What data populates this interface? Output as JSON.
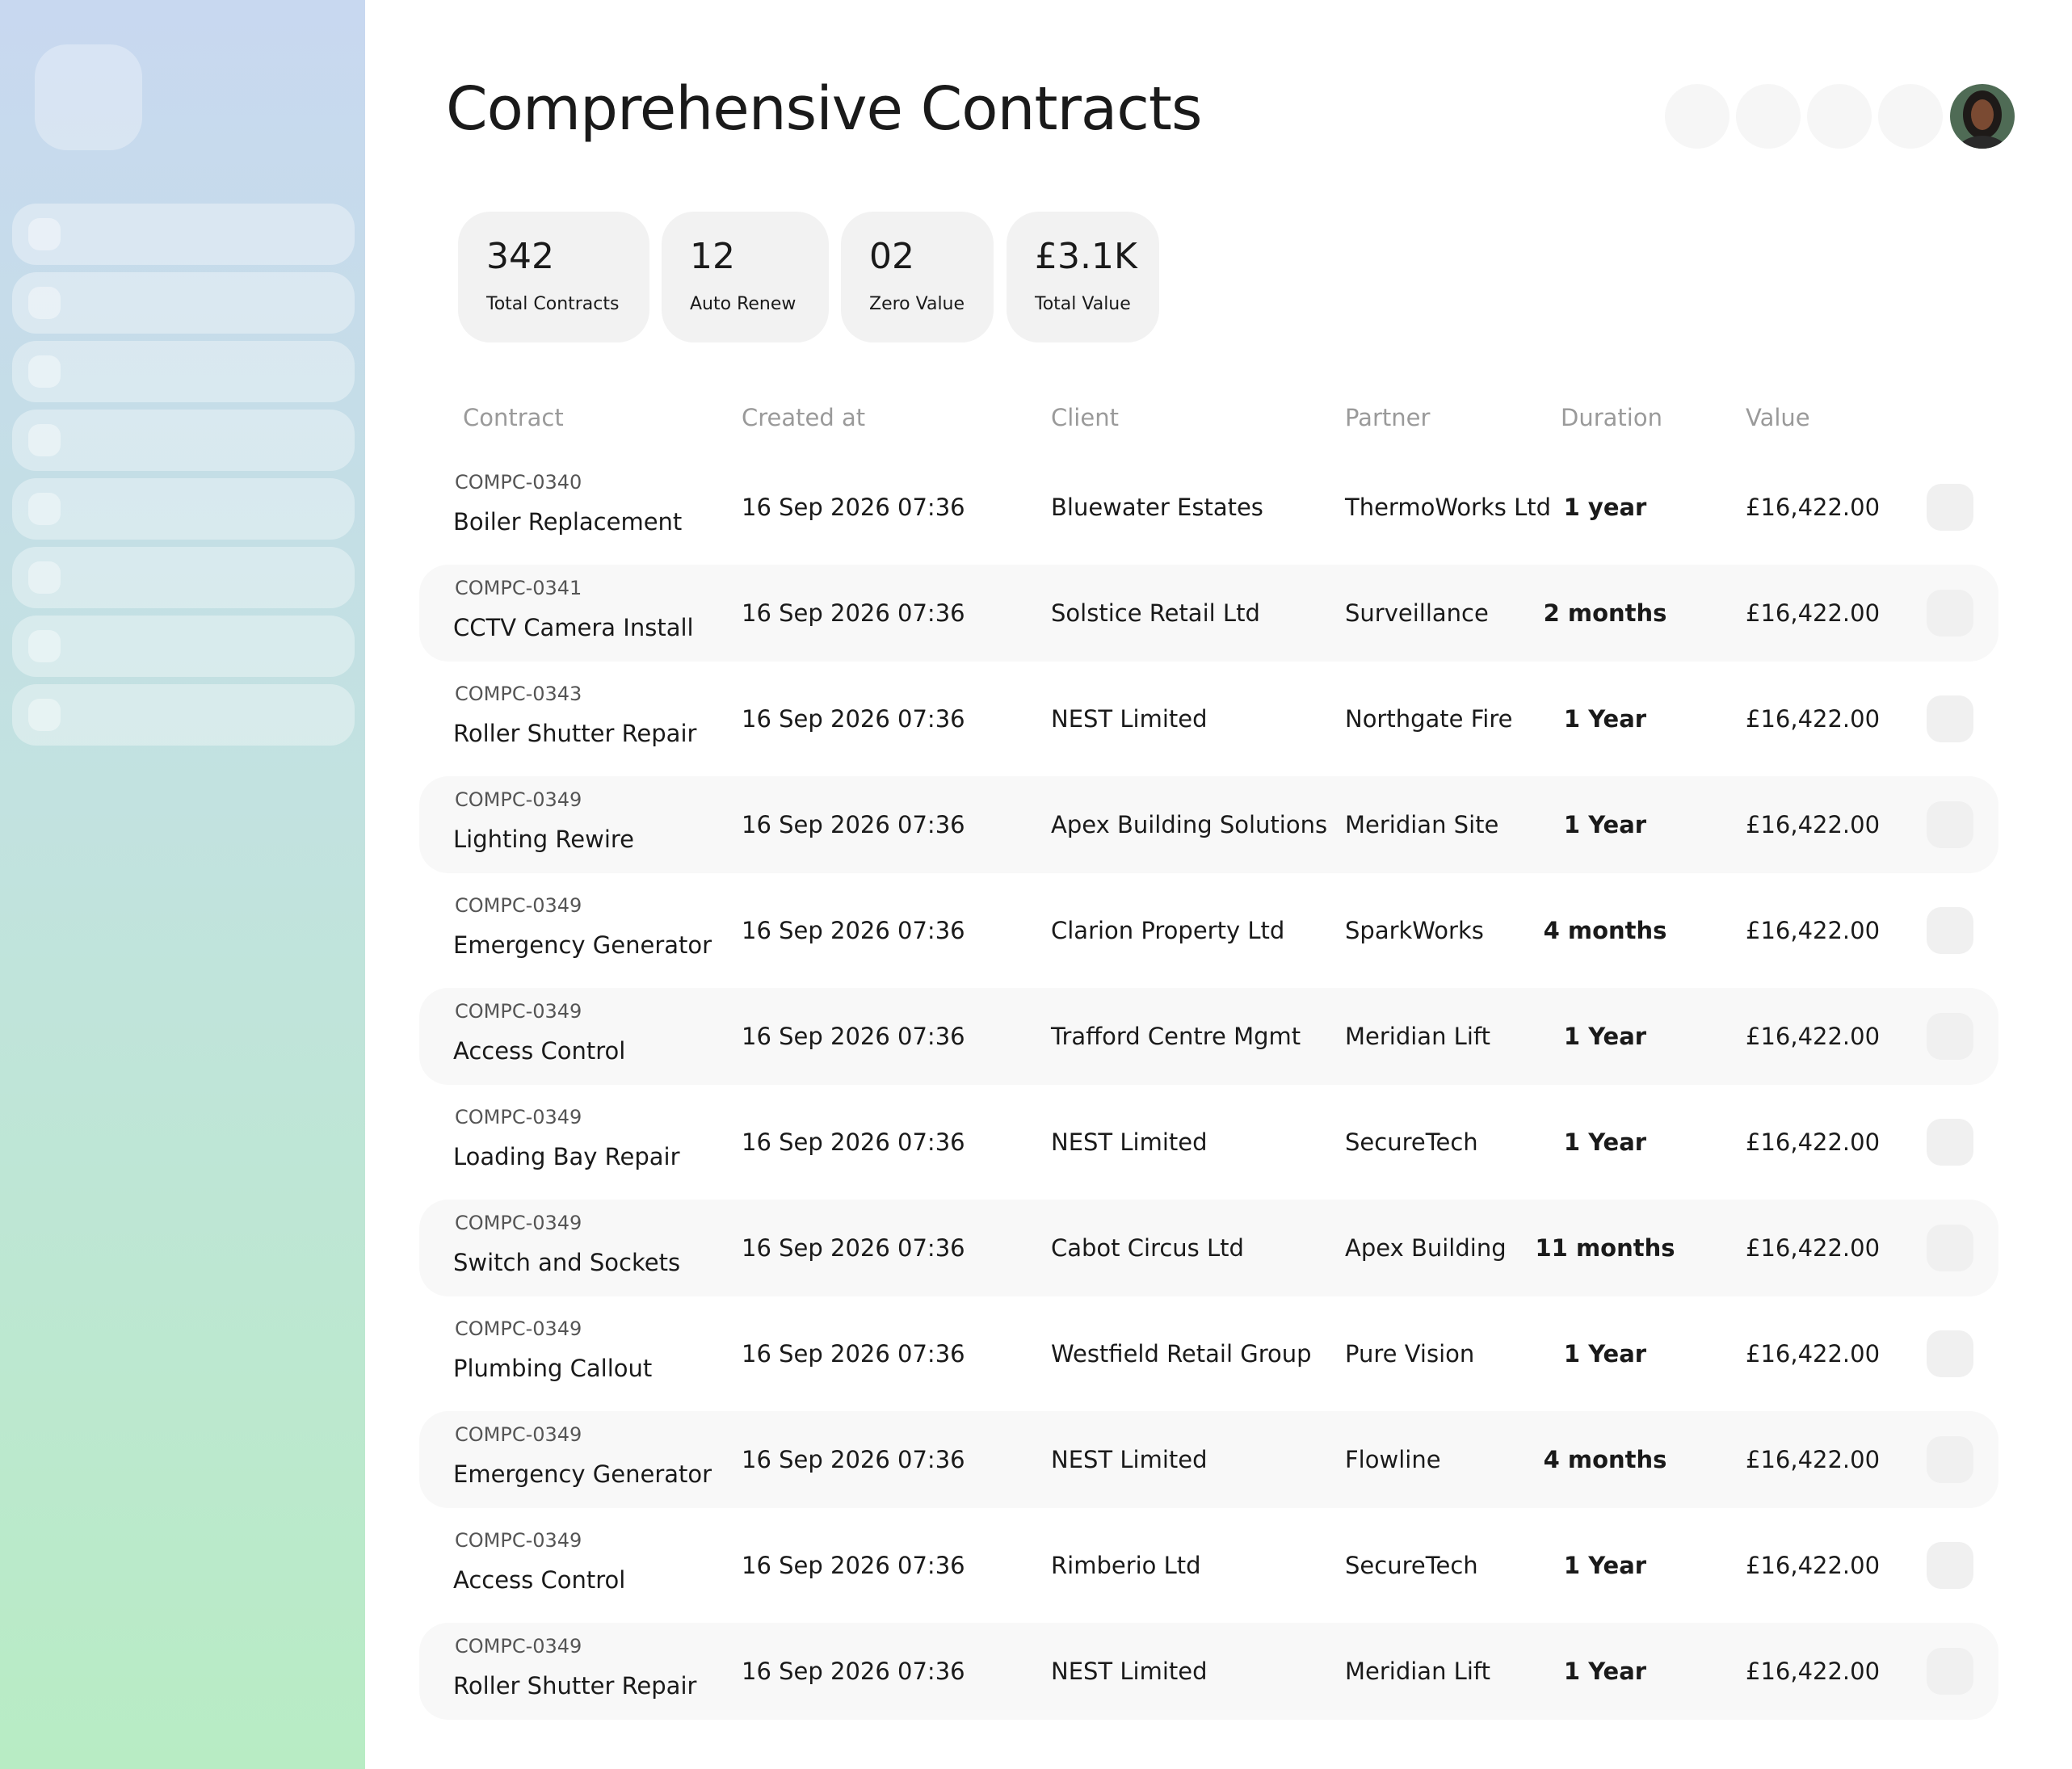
{
  "header": {
    "title": "Comprehensive Contracts"
  },
  "stats": [
    {
      "value": "342",
      "label": "Total Contracts"
    },
    {
      "value": "12",
      "label": "Auto Renew"
    },
    {
      "value": "02",
      "label": "Zero Value"
    },
    {
      "value": "£3.1K",
      "label": "Total Value"
    }
  ],
  "table": {
    "columns": [
      "Contract",
      "Created at",
      "Client",
      "Partner",
      "Duration",
      "Value"
    ],
    "rows": [
      {
        "id": "COMPC-0340",
        "name": "Boiler Replacement",
        "created": "16 Sep 2026 07:36",
        "client": "Bluewater Estates",
        "partner": "ThermoWorks Ltd",
        "duration": "1 year",
        "value": "£16,422.00"
      },
      {
        "id": "COMPC-0341",
        "name": "CCTV Camera Install",
        "created": "16 Sep 2026 07:36",
        "client": "Solstice Retail Ltd",
        "partner": "Surveillance",
        "duration": "2 months",
        "value": "£16,422.00"
      },
      {
        "id": "COMPC-0343",
        "name": "Roller Shutter Repair",
        "created": "16 Sep 2026 07:36",
        "client": "NEST Limited",
        "partner": "Northgate Fire",
        "duration": "1 Year",
        "value": "£16,422.00"
      },
      {
        "id": "COMPC-0349",
        "name": "Lighting Rewire",
        "created": "16 Sep 2026 07:36",
        "client": "Apex Building Solutions",
        "partner": "Meridian Site",
        "duration": "1 Year",
        "value": "£16,422.00"
      },
      {
        "id": "COMPC-0349",
        "name": "Emergency Generator",
        "created": "16 Sep 2026 07:36",
        "client": "Clarion Property Ltd",
        "partner": "SparkWorks",
        "duration": "4 months",
        "value": "£16,422.00"
      },
      {
        "id": "COMPC-0349",
        "name": "Access Control",
        "created": "16 Sep 2026 07:36",
        "client": "Trafford Centre Mgmt",
        "partner": "Meridian Lift",
        "duration": "1 Year",
        "value": "£16,422.00"
      },
      {
        "id": "COMPC-0349",
        "name": "Loading Bay Repair",
        "created": "16 Sep 2026 07:36",
        "client": "NEST Limited",
        "partner": "SecureTech",
        "duration": "1 Year",
        "value": "£16,422.00"
      },
      {
        "id": "COMPC-0349",
        "name": "Switch and Sockets",
        "created": "16 Sep 2026 07:36",
        "client": "Cabot Circus Ltd",
        "partner": "Apex Building",
        "duration": "11 months",
        "value": "£16,422.00"
      },
      {
        "id": "COMPC-0349",
        "name": "Plumbing Callout",
        "created": "16 Sep 2026 07:36",
        "client": "Westfield Retail Group",
        "partner": "Pure Vision",
        "duration": "1 Year",
        "value": "£16,422.00"
      },
      {
        "id": "COMPC-0349",
        "name": "Emergency Generator",
        "created": "16 Sep 2026 07:36",
        "client": "NEST Limited",
        "partner": "Flowline",
        "duration": "4 months",
        "value": "£16,422.00"
      },
      {
        "id": "COMPC-0349",
        "name": "Access Control",
        "created": "16 Sep 2026 07:36",
        "client": "Rimberio Ltd",
        "partner": "SecureTech",
        "duration": "1 Year",
        "value": "£16,422.00"
      },
      {
        "id": "COMPC-0349",
        "name": "Roller Shutter Repair",
        "created": "16 Sep 2026 07:36",
        "client": "NEST Limited",
        "partner": "Meridian Lift",
        "duration": "1 Year",
        "value": "£16,422.00"
      }
    ]
  }
}
